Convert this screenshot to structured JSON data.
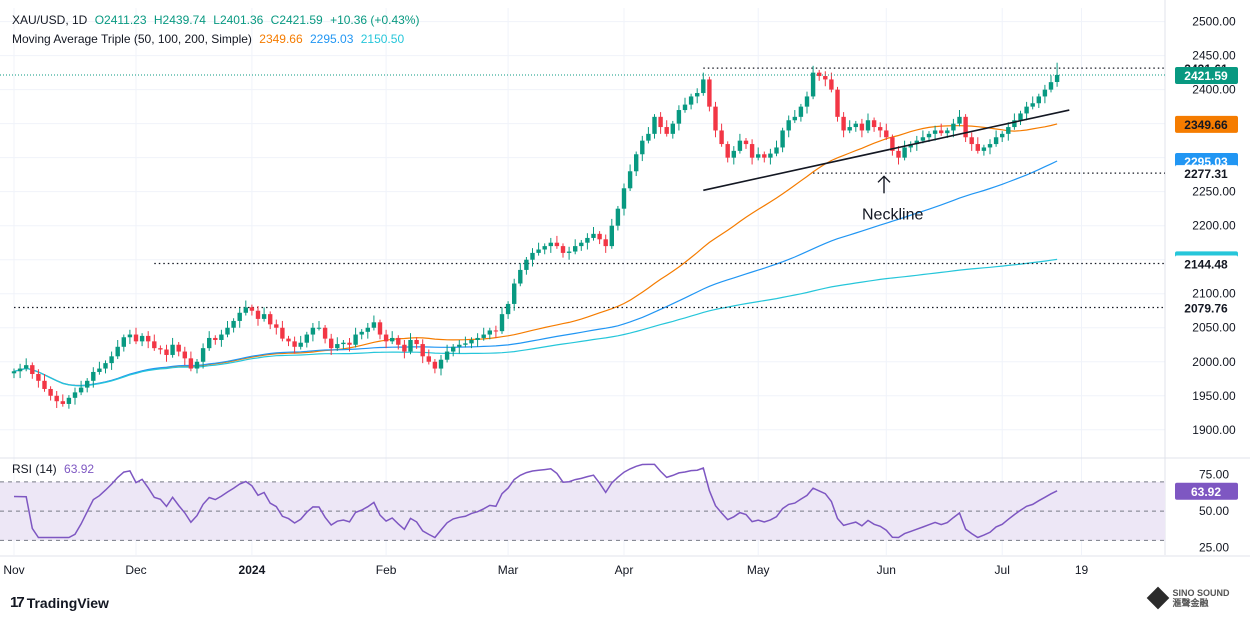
{
  "header": {
    "symbol": "XAU/USD, 1D",
    "open": "O2411.23",
    "high": "H2439.74",
    "low": "L2401.36",
    "close": "C2421.59",
    "change": "+10.36 (+0.43%)",
    "ma_name": "Moving Average Triple (50, 100, 200, Simple)",
    "ma50": "2349.66",
    "ma100": "2295.03",
    "ma200": "2150.50",
    "rsi_name": "RSI (14)",
    "rsi_value": "63.92"
  },
  "branding": {
    "tradingview": "TradingView",
    "tv_mark": "17",
    "watermark_line1": "SINO SOUND",
    "watermark_line2": "滙聲金融"
  },
  "colors": {
    "up": "#089981",
    "down": "#f23645",
    "ma50": "#f57c00",
    "ma100": "#2196f3",
    "ma200": "#26c6da",
    "rsi": "#7e57c2",
    "rsi_band": "#ede7f6",
    "grid": "#f0f3fa",
    "text": "#131722"
  },
  "chart_data": {
    "type": "candlestick",
    "symbol": "XAU/USD",
    "timeframe": "1D",
    "price_axis": {
      "ylim": [
        1860,
        2520
      ],
      "ticks": [
        1900,
        1950,
        2000,
        2050,
        2100,
        2150,
        2200,
        2250,
        2300,
        2350,
        2400,
        2450,
        2500
      ]
    },
    "time_labels": [
      {
        "label": "Nov",
        "bar": 0
      },
      {
        "label": "Dec",
        "bar": 20
      },
      {
        "label": "2024",
        "bar": 39
      },
      {
        "label": "Feb",
        "bar": 61
      },
      {
        "label": "Mar",
        "bar": 81
      },
      {
        "label": "Apr",
        "bar": 100
      },
      {
        "label": "May",
        "bar": 122
      },
      {
        "label": "Jun",
        "bar": 143
      },
      {
        "label": "Jul",
        "bar": 162
      },
      {
        "label": "19",
        "bar": 175
      }
    ],
    "closes": [
      1986,
      1990,
      1995,
      1982,
      1972,
      1960,
      1950,
      1942,
      1938,
      1947,
      1955,
      1962,
      1972,
      1985,
      1990,
      1998,
      2008,
      2022,
      2036,
      2040,
      2030,
      2038,
      2030,
      2020,
      2018,
      2010,
      2025,
      2015,
      2005,
      1990,
      2000,
      2020,
      2035,
      2032,
      2040,
      2050,
      2060,
      2072,
      2080,
      2075,
      2063,
      2070,
      2055,
      2050,
      2034,
      2030,
      2022,
      2028,
      2040,
      2050,
      2050,
      2034,
      2020,
      2026,
      2028,
      2025,
      2040,
      2044,
      2050,
      2058,
      2040,
      2030,
      2035,
      2025,
      2015,
      2032,
      2026,
      2008,
      2000,
      1990,
      2003,
      2015,
      2022,
      2025,
      2027,
      2032,
      2035,
      2040,
      2046,
      2045,
      2070,
      2085,
      2115,
      2135,
      2150,
      2160,
      2165,
      2170,
      2175,
      2170,
      2160,
      2162,
      2170,
      2175,
      2182,
      2188,
      2180,
      2170,
      2200,
      2225,
      2255,
      2280,
      2305,
      2325,
      2335,
      2360,
      2345,
      2335,
      2350,
      2370,
      2378,
      2390,
      2395,
      2415,
      2375,
      2340,
      2320,
      2300,
      2310,
      2325,
      2320,
      2300,
      2305,
      2300,
      2306,
      2315,
      2340,
      2355,
      2360,
      2375,
      2390,
      2425,
      2420,
      2415,
      2400,
      2360,
      2340,
      2345,
      2350,
      2340,
      2355,
      2345,
      2340,
      2330,
      2310,
      2300,
      2315,
      2320,
      2325,
      2330,
      2335,
      2340,
      2336,
      2340,
      2350,
      2360,
      2330,
      2320,
      2310,
      2315,
      2320,
      2330,
      2335,
      2345,
      2355,
      2365,
      2375,
      2380,
      2390,
      2400,
      2411,
      2421.59
    ],
    "series": [
      {
        "name": "MA 50",
        "value": 2349.66
      },
      {
        "name": "MA 100",
        "value": 2295.03
      },
      {
        "name": "MA 200",
        "value": 2150.5
      }
    ],
    "horizontal_lines": [
      2431.61,
      2277.31,
      2144.48,
      2079.76
    ],
    "price_labels": [
      {
        "text": "2431.61",
        "value": 2431.61,
        "color": "#131722",
        "bg": "#ffffff"
      },
      {
        "text": "2421.59",
        "value": 2421.59,
        "color": "#ffffff",
        "bg": "#089981"
      },
      {
        "text": "2349.66",
        "value": 2349.66,
        "color": "#131722",
        "bg": "#f57c00"
      },
      {
        "text": "2295.03",
        "value": 2295.03,
        "color": "#ffffff",
        "bg": "#2196f3"
      },
      {
        "text": "2277.31",
        "value": 2277.31,
        "color": "#131722",
        "bg": "#ffffff"
      },
      {
        "text": "2150.50",
        "value": 2150.5,
        "color": "#131722",
        "bg": "#26c6da"
      },
      {
        "text": "2144.48",
        "value": 2144.48,
        "color": "#131722",
        "bg": "#ffffff"
      },
      {
        "text": "2079.76",
        "value": 2079.76,
        "color": "#131722",
        "bg": "#ffffff"
      }
    ],
    "annotation": {
      "text": "Neckline",
      "trendline_from": {
        "bar": 113,
        "price": 2252
      },
      "trendline_to": {
        "bar": 173,
        "price": 2370
      }
    },
    "rsi": {
      "period": 14,
      "ylim": [
        20,
        85
      ],
      "ticks": [
        25,
        50,
        75
      ],
      "upper_band": 70,
      "lower_band": 30,
      "value": 63.92
    }
  }
}
